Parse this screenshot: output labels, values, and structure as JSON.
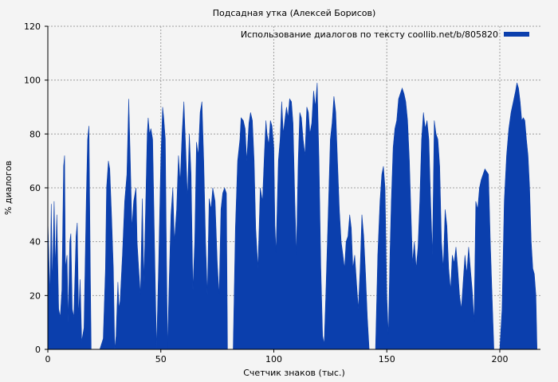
{
  "chart_data": {
    "type": "area",
    "title": "Подсадная утка (Алексей Борисов)",
    "xlabel": "Счетчик знаков (тыс.)",
    "ylabel": "% диалогов",
    "xlim": [
      0,
      218
    ],
    "ylim": [
      0,
      120
    ],
    "xticks": [
      0,
      50,
      100,
      150,
      200
    ],
    "yticks": [
      0,
      20,
      40,
      60,
      80,
      100,
      120
    ],
    "grid": true,
    "legend_position": "top-right",
    "series_color": "#0b3fad",
    "series": [
      {
        "name": "Использование диалогов по тексту coollib.net/b/805820",
        "points": [
          [
            0,
            48
          ],
          [
            1,
            20
          ],
          [
            1.5,
            54
          ],
          [
            2,
            24
          ],
          [
            2.8,
            55
          ],
          [
            3.3,
            30
          ],
          [
            4,
            50
          ],
          [
            4.8,
            15
          ],
          [
            5.5,
            12
          ],
          [
            6.2,
            22
          ],
          [
            7,
            68
          ],
          [
            7.4,
            72
          ],
          [
            7.8,
            30
          ],
          [
            8.5,
            35
          ],
          [
            9,
            10
          ],
          [
            9.7,
            40
          ],
          [
            10.2,
            43
          ],
          [
            10.8,
            15
          ],
          [
            11.5,
            12
          ],
          [
            12.5,
            42
          ],
          [
            13,
            47
          ],
          [
            13.6,
            12
          ],
          [
            14.3,
            26
          ],
          [
            15,
            3
          ],
          [
            16,
            8
          ],
          [
            17,
            55
          ],
          [
            17.6,
            78
          ],
          [
            18.2,
            83
          ],
          [
            18.8,
            30
          ],
          [
            19.2,
            0
          ],
          [
            23,
            0
          ],
          [
            24.5,
            4
          ],
          [
            25.5,
            30
          ],
          [
            26,
            60
          ],
          [
            26.8,
            70
          ],
          [
            27.4,
            67
          ],
          [
            28.2,
            50
          ],
          [
            29,
            30
          ],
          [
            29.6,
            0
          ],
          [
            30.2,
            5
          ],
          [
            31,
            25
          ],
          [
            31.5,
            15
          ],
          [
            32,
            18
          ],
          [
            33,
            35
          ],
          [
            34,
            55
          ],
          [
            35,
            65
          ],
          [
            35.8,
            93
          ],
          [
            36.5,
            70
          ],
          [
            37.2,
            45
          ],
          [
            38,
            55
          ],
          [
            39,
            60
          ],
          [
            39.5,
            40
          ],
          [
            40.2,
            30
          ],
          [
            41,
            20
          ],
          [
            41.8,
            56
          ],
          [
            42.5,
            25
          ],
          [
            43.2,
            50
          ],
          [
            44,
            80
          ],
          [
            44.4,
            86
          ],
          [
            45,
            80
          ],
          [
            45.6,
            82
          ],
          [
            46.4,
            78
          ],
          [
            47.2,
            40
          ],
          [
            48.1,
            0
          ],
          [
            49,
            30
          ],
          [
            50,
            70
          ],
          [
            50.8,
            90
          ],
          [
            51.3,
            86
          ],
          [
            52,
            78
          ],
          [
            52.5,
            35
          ],
          [
            53,
            0
          ],
          [
            53.7,
            25
          ],
          [
            54.5,
            50
          ],
          [
            55.3,
            60
          ],
          [
            56,
            40
          ],
          [
            57,
            52
          ],
          [
            57.8,
            72
          ],
          [
            58.6,
            62
          ],
          [
            59.4,
            80
          ],
          [
            60.2,
            92
          ],
          [
            61,
            75
          ],
          [
            61.8,
            56
          ],
          [
            62.6,
            80
          ],
          [
            63.4,
            65
          ],
          [
            64.2,
            22
          ],
          [
            65,
            40
          ],
          [
            65.8,
            77
          ],
          [
            66.6,
            72
          ],
          [
            67.4,
            88
          ],
          [
            68.2,
            92
          ],
          [
            69,
            70
          ],
          [
            69.8,
            40
          ],
          [
            70.6,
            20
          ],
          [
            71.4,
            56
          ],
          [
            72.2,
            52
          ],
          [
            73,
            60
          ],
          [
            74,
            55
          ],
          [
            75,
            32
          ],
          [
            75.8,
            20
          ],
          [
            76.6,
            52
          ],
          [
            77.4,
            58
          ],
          [
            78.2,
            60
          ],
          [
            79,
            58
          ],
          [
            79.5,
            0
          ],
          [
            82,
            0
          ],
          [
            83,
            45
          ],
          [
            84,
            70
          ],
          [
            85,
            78
          ],
          [
            85.5,
            86
          ],
          [
            86.5,
            85
          ],
          [
            87.3,
            82
          ],
          [
            88,
            70
          ],
          [
            89,
            84
          ],
          [
            89.7,
            88
          ],
          [
            90.5,
            85
          ],
          [
            91.3,
            70
          ],
          [
            92,
            45
          ],
          [
            93,
            30
          ],
          [
            94,
            60
          ],
          [
            95,
            55
          ],
          [
            95.8,
            72
          ],
          [
            96.5,
            85
          ],
          [
            97,
            80
          ],
          [
            97.8,
            76
          ],
          [
            98.5,
            85
          ],
          [
            99.2,
            83
          ],
          [
            100,
            75
          ],
          [
            100.5,
            46
          ],
          [
            101,
            36
          ],
          [
            102,
            70
          ],
          [
            102.8,
            78
          ],
          [
            103.5,
            92
          ],
          [
            104.2,
            80
          ],
          [
            105,
            86
          ],
          [
            105.6,
            90
          ],
          [
            106.3,
            86
          ],
          [
            107,
            93
          ],
          [
            107.8,
            92
          ],
          [
            108.5,
            84
          ],
          [
            109.3,
            55
          ],
          [
            110,
            35
          ],
          [
            110.8,
            70
          ],
          [
            111.5,
            88
          ],
          [
            112.2,
            86
          ],
          [
            113,
            78
          ],
          [
            113.8,
            72
          ],
          [
            114.6,
            90
          ],
          [
            115.3,
            88
          ],
          [
            116,
            80
          ],
          [
            116.8,
            84
          ],
          [
            117.6,
            96
          ],
          [
            118.4,
            90
          ],
          [
            119.2,
            99
          ],
          [
            120,
            70
          ],
          [
            120.8,
            30
          ],
          [
            121.6,
            5
          ],
          [
            122.3,
            2
          ],
          [
            123,
            20
          ],
          [
            124,
            48
          ],
          [
            125,
            78
          ],
          [
            125.8,
            84
          ],
          [
            126.6,
            94
          ],
          [
            127.4,
            88
          ],
          [
            128.2,
            70
          ],
          [
            129,
            52
          ],
          [
            129.8,
            40
          ],
          [
            130.6,
            35
          ],
          [
            131.3,
            30
          ],
          [
            132,
            40
          ],
          [
            132.8,
            42
          ],
          [
            133.6,
            50
          ],
          [
            134.3,
            45
          ],
          [
            135,
            30
          ],
          [
            135.8,
            35
          ],
          [
            136.6,
            25
          ],
          [
            137.4,
            15
          ],
          [
            138.2,
            30
          ],
          [
            139,
            50
          ],
          [
            139.8,
            42
          ],
          [
            140.6,
            28
          ],
          [
            141.4,
            12
          ],
          [
            142.2,
            0
          ],
          [
            145,
            0
          ],
          [
            146,
            35
          ],
          [
            147,
            55
          ],
          [
            147.8,
            65
          ],
          [
            148.5,
            68
          ],
          [
            149.2,
            60
          ],
          [
            150,
            20
          ],
          [
            150.7,
            5
          ],
          [
            151.4,
            35
          ],
          [
            152,
            55
          ],
          [
            152.8,
            75
          ],
          [
            153.6,
            82
          ],
          [
            154.4,
            85
          ],
          [
            155.2,
            93
          ],
          [
            156,
            95
          ],
          [
            156.8,
            97
          ],
          [
            157.6,
            95
          ],
          [
            158.4,
            92
          ],
          [
            159.2,
            85
          ],
          [
            160,
            70
          ],
          [
            160.7,
            50
          ],
          [
            161.4,
            32
          ],
          [
            162.2,
            40
          ],
          [
            163,
            30
          ],
          [
            163.8,
            38
          ],
          [
            164.6,
            55
          ],
          [
            165.4,
            78
          ],
          [
            166.2,
            88
          ],
          [
            167,
            82
          ],
          [
            167.8,
            85
          ],
          [
            168.6,
            78
          ],
          [
            169.4,
            55
          ],
          [
            170.2,
            35
          ],
          [
            171,
            85
          ],
          [
            171.8,
            80
          ],
          [
            172.6,
            78
          ],
          [
            173.4,
            68
          ],
          [
            174.2,
            40
          ],
          [
            175,
            30
          ],
          [
            175.8,
            52
          ],
          [
            176.6,
            46
          ],
          [
            177.4,
            30
          ],
          [
            178.2,
            22
          ],
          [
            179,
            35
          ],
          [
            179.8,
            32
          ],
          [
            180.6,
            38
          ],
          [
            181.4,
            30
          ],
          [
            182.2,
            20
          ],
          [
            183,
            15
          ],
          [
            183.8,
            25
          ],
          [
            184.6,
            35
          ],
          [
            185.4,
            28
          ],
          [
            186.2,
            38
          ],
          [
            187,
            30
          ],
          [
            187.8,
            22
          ],
          [
            188.6,
            10
          ],
          [
            189.4,
            55
          ],
          [
            190.2,
            52
          ],
          [
            191,
            60
          ],
          [
            191.8,
            63
          ],
          [
            192.6,
            65
          ],
          [
            193.4,
            67
          ],
          [
            194.2,
            66
          ],
          [
            195,
            65
          ],
          [
            195.8,
            40
          ],
          [
            196.6,
            20
          ],
          [
            197.4,
            0
          ],
          [
            200,
            0
          ],
          [
            201,
            15
          ],
          [
            202,
            55
          ],
          [
            203,
            72
          ],
          [
            204,
            82
          ],
          [
            205,
            88
          ],
          [
            206,
            92
          ],
          [
            207,
            96
          ],
          [
            207.6,
            99
          ],
          [
            208.3,
            97
          ],
          [
            209,
            92
          ],
          [
            209.7,
            85
          ],
          [
            210.4,
            86
          ],
          [
            211.1,
            85
          ],
          [
            211.8,
            78
          ],
          [
            212.5,
            72
          ],
          [
            213.2,
            60
          ],
          [
            213.9,
            40
          ],
          [
            214.6,
            30
          ],
          [
            215.3,
            28
          ],
          [
            216,
            20
          ],
          [
            216.5,
            0
          ]
        ]
      }
    ]
  }
}
